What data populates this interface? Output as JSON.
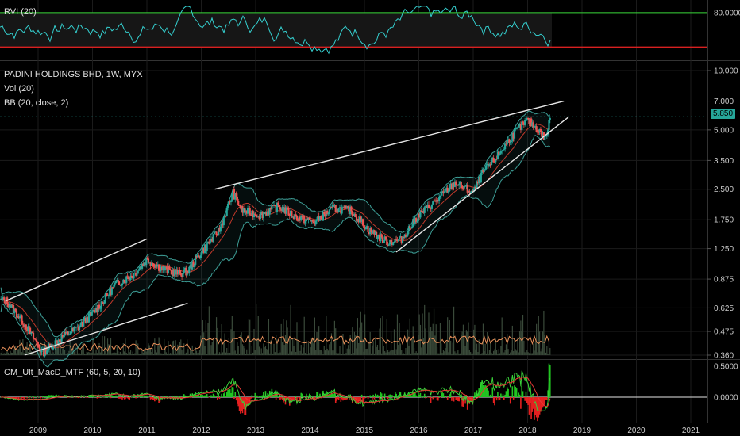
{
  "rvi_pane": {
    "label": "RVI (20)",
    "axis_label": "80.0000",
    "upper_line_color": "#39d839",
    "lower_line_color": "#d82020",
    "line_color": "#35d0d0"
  },
  "price_pane": {
    "title": "PADINI HOLDINGS BHD, 1W, MYX",
    "vol_label": "Vol (20)",
    "bb_label": "BB (20, close, 2)",
    "last_price": "5.850",
    "y_ticks": [
      "10.000",
      "7.000",
      "5.000",
      "3.500",
      "2.500",
      "1.750",
      "1.250",
      "0.875",
      "0.625",
      "0.475",
      "0.360"
    ]
  },
  "macd_pane": {
    "label": "CM_Ult_MacD_MTF (60, 5, 20, 10)",
    "y_ticks": [
      "0.5000",
      "0.0000"
    ]
  },
  "x_axis": {
    "labels": [
      "2009",
      "2010",
      "2011",
      "2012",
      "2013",
      "2014",
      "2015",
      "2016",
      "2017",
      "2018",
      "2019",
      "2020",
      "2021"
    ]
  },
  "colors": {
    "background": "#000000",
    "grid": "#1b1b1b",
    "up": "#26a69a",
    "down": "#ef5350",
    "bb": "#3d9e96",
    "volume": "#3a4a3a",
    "trendline": "#e6e6e6",
    "macd_up": "#21c521",
    "macd_down": "#e52020"
  },
  "chart_data": [
    {
      "type": "line",
      "title": "RVI (20)",
      "ylim": [
        0,
        100
      ],
      "levels": [
        80,
        20
      ],
      "note": "oscillator mostly between upper and lower levels"
    },
    {
      "type": "candlestick",
      "title": "PADINI HOLDINGS BHD, 1W, MYX",
      "y_scale": "log",
      "ylim": [
        0.35,
        10.0
      ],
      "x_range": [
        "2008-06",
        "2021-06"
      ],
      "series": [
        {
          "name": "close",
          "x": [
            "2008-06",
            "2008-10",
            "2009-02",
            "2009-06",
            "2009-10",
            "2010-02",
            "2010-06",
            "2010-10",
            "2011-01",
            "2011-04",
            "2011-08",
            "2011-10",
            "2012-01",
            "2012-05",
            "2012-08",
            "2012-10",
            "2013-02",
            "2013-06",
            "2013-10",
            "2014-02",
            "2014-06",
            "2014-10",
            "2015-02",
            "2015-06",
            "2015-09",
            "2016-01",
            "2016-05",
            "2016-09",
            "2017-01",
            "2017-03",
            "2017-06",
            "2017-10",
            "2018-01",
            "2018-03",
            "2018-05",
            "2018-06"
          ],
          "values": [
            0.68,
            0.52,
            0.37,
            0.44,
            0.5,
            0.62,
            0.82,
            0.92,
            1.1,
            1.0,
            0.93,
            0.96,
            1.2,
            1.55,
            2.4,
            1.95,
            1.85,
            2.05,
            1.8,
            1.7,
            2.0,
            1.95,
            1.55,
            1.35,
            1.38,
            1.85,
            2.2,
            2.7,
            2.4,
            3.0,
            3.6,
            4.8,
            5.6,
            5.1,
            4.5,
            5.85
          ]
        }
      ],
      "trendlines": [
        {
          "from": [
            "2008-06",
            0.68
          ],
          "to": [
            "2011-01",
            1.4
          ]
        },
        {
          "from": [
            "2008-10",
            0.36
          ],
          "to": [
            "2011-10",
            0.66
          ]
        },
        {
          "from": [
            "2012-04",
            2.5
          ],
          "to": [
            "2018-09",
            7.0
          ]
        },
        {
          "from": [
            "2015-08",
            1.2
          ],
          "to": [
            "2018-10",
            5.8
          ]
        }
      ]
    },
    {
      "type": "bar",
      "title": "CM_Ult_MacD_MTF (60, 5, 20, 10)",
      "ylim": [
        -0.25,
        0.55
      ],
      "note": "histogram with macd and signal lines"
    }
  ]
}
